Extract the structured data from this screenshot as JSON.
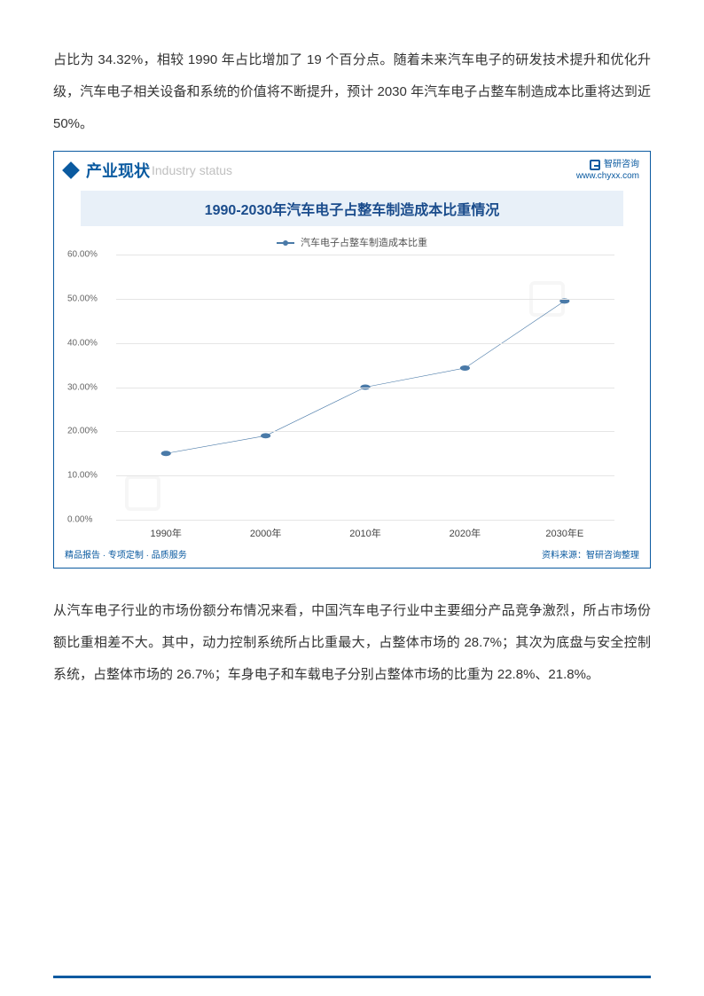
{
  "paragraph1": "占比为 34.32%，相较 1990 年占比增加了 19 个百分点。随着未来汽车电子的研发技术提升和优化升级，汽车电子相关设备和系统的价值将不断提升，预计 2030 年汽车电子占整车制造成本比重将达到近 50%。",
  "chart": {
    "section_title_cn": "产业现状",
    "section_title_en": "Industry status",
    "brand": "智研咨询",
    "brand_url": "www.chyxx.com",
    "title": "1990-2030年汽车电子占整车制造成本比重情况",
    "legend_label": "汽车电子占整车制造成本比重",
    "type": "line",
    "categories": [
      "1990年",
      "2000年",
      "2010年",
      "2020年",
      "2030年E"
    ],
    "values": [
      15,
      19,
      30,
      34.32,
      49.5
    ],
    "line_color": "#4a7aa8",
    "marker_color": "#4a7aa8",
    "background_color": "#ffffff",
    "grid_color": "#e5e5e5",
    "ylim": [
      0,
      60
    ],
    "ytick_step": 10,
    "ytick_labels": [
      "0.00%",
      "10.00%",
      "20.00%",
      "30.00%",
      "40.00%",
      "50.00%",
      "60.00%"
    ],
    "y_format": "0.00%",
    "title_fontsize": 16,
    "label_fontsize": 11,
    "footer_left": "精品报告 · 专项定制 · 品质服务",
    "footer_right": "资料来源：智研咨询整理",
    "watermark_text": "智研咨询"
  },
  "paragraph2": "从汽车电子行业的市场份额分布情况来看，中国汽车电子行业中主要细分产品竞争激烈，所占市场份额比重相差不大。其中，动力控制系统所占比重最大，占整体市场的 28.7%；其次为底盘与安全控制系统，占整体市场的 26.7%；车身电子和车载电子分别占整体市场的比重为 22.8%、21.8%。"
}
